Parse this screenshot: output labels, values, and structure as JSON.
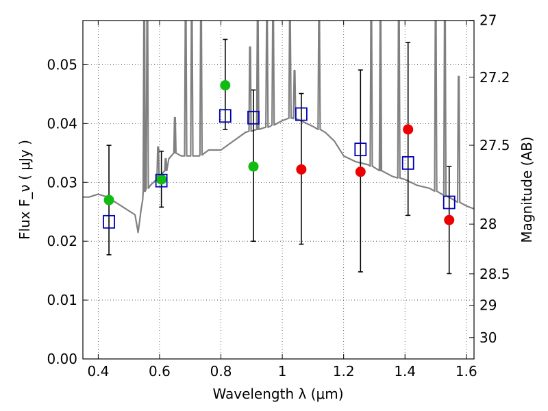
{
  "chart_data": {
    "type": "scatter",
    "xlabel": "Wavelength  λ (μm)",
    "ylabel": "Flux  F_ν  ( μJy )",
    "y2label": "Magnitude (AB)",
    "xlim": [
      0.35,
      1.625
    ],
    "ylim": [
      0.0,
      0.0575
    ],
    "x_ticks": [
      0.4,
      0.6,
      0.8,
      1.0,
      1.2,
      1.4,
      1.6
    ],
    "x_tick_labels": [
      "0.4",
      "0.6",
      "0.8",
      "1",
      "1.2",
      "1.4",
      "1.6"
    ],
    "y_ticks": [
      0.0,
      0.01,
      0.02,
      0.03,
      0.04,
      0.05
    ],
    "y_tick_labels": [
      "0.00",
      "0.01",
      "0.02",
      "0.03",
      "0.04",
      "0.05"
    ],
    "y2_ticks": [
      27,
      27.2,
      27.5,
      28,
      28.5,
      29,
      30
    ],
    "y2_tick_labels": [
      "27",
      "27.2",
      "27.5",
      "28",
      "28.5",
      "29",
      "30"
    ],
    "grid": true,
    "colors": {
      "model": "#808080",
      "green": "#11bb11",
      "red": "#ee0000",
      "square": "#0000bb",
      "errorbar": "#000000"
    },
    "model_spectrum": {
      "name": "",
      "x": [
        0.35,
        0.37,
        0.4,
        0.43,
        0.46,
        0.49,
        0.52,
        0.53,
        0.535,
        0.54,
        0.545,
        0.55,
        0.57,
        0.59,
        0.6,
        0.62,
        0.63,
        0.65,
        0.67,
        0.7,
        0.73,
        0.76,
        0.8,
        0.84,
        0.88,
        0.92,
        0.96,
        1.0,
        1.03,
        1.06,
        1.1,
        1.14,
        1.17,
        1.2,
        1.24,
        1.28,
        1.32,
        1.36,
        1.4,
        1.44,
        1.48,
        1.52,
        1.56,
        1.6,
        1.625
      ],
      "y": [
        0.0275,
        0.0275,
        0.028,
        0.0275,
        0.0265,
        0.0255,
        0.0245,
        0.0215,
        0.0235,
        0.0255,
        0.027,
        0.0285,
        0.0295,
        0.0305,
        0.031,
        0.032,
        0.034,
        0.035,
        0.0345,
        0.0345,
        0.0345,
        0.0355,
        0.0355,
        0.037,
        0.0385,
        0.039,
        0.0395,
        0.0405,
        0.041,
        0.0405,
        0.0395,
        0.0385,
        0.037,
        0.0345,
        0.0335,
        0.033,
        0.032,
        0.031,
        0.0305,
        0.0295,
        0.029,
        0.028,
        0.027,
        0.026,
        0.0255
      ]
    },
    "emission_lines": [
      {
        "x": 0.55,
        "peak": 0.0575
      },
      {
        "x": 0.56,
        "peak": 0.0575
      },
      {
        "x": 0.595,
        "peak": 0.036
      },
      {
        "x": 0.62,
        "peak": 0.034
      },
      {
        "x": 0.65,
        "peak": 0.041
      },
      {
        "x": 0.685,
        "peak": 0.0575
      },
      {
        "x": 0.705,
        "peak": 0.0575
      },
      {
        "x": 0.735,
        "peak": 0.0575
      },
      {
        "x": 0.895,
        "peak": 0.053
      },
      {
        "x": 0.92,
        "peak": 0.0575
      },
      {
        "x": 0.95,
        "peak": 0.0575
      },
      {
        "x": 0.97,
        "peak": 0.0575
      },
      {
        "x": 1.025,
        "peak": 0.0575
      },
      {
        "x": 1.04,
        "peak": 0.049
      },
      {
        "x": 1.12,
        "peak": 0.0575
      },
      {
        "x": 1.29,
        "peak": 0.0575
      },
      {
        "x": 1.32,
        "peak": 0.0575
      },
      {
        "x": 1.38,
        "peak": 0.0575
      },
      {
        "x": 1.5,
        "peak": 0.0575
      },
      {
        "x": 1.53,
        "peak": 0.0575
      },
      {
        "x": 1.575,
        "peak": 0.048
      }
    ],
    "observed": [
      {
        "x": 0.435,
        "y": 0.027,
        "color": "green"
      },
      {
        "x": 0.606,
        "y": 0.0305,
        "color": "green"
      },
      {
        "x": 0.814,
        "y": 0.0465,
        "color": "green"
      },
      {
        "x": 0.906,
        "y": 0.0327,
        "color": "green"
      },
      {
        "x": 1.062,
        "y": 0.0322,
        "color": "red"
      },
      {
        "x": 1.255,
        "y": 0.0318,
        "color": "red"
      },
      {
        "x": 1.41,
        "y": 0.039,
        "color": "red"
      },
      {
        "x": 1.544,
        "y": 0.0236,
        "color": "red"
      }
    ],
    "model_photometry": [
      {
        "x": 0.435,
        "y": 0.0233,
        "err_low": 0.0177,
        "err_high": 0.0363
      },
      {
        "x": 0.606,
        "y": 0.0303,
        "err_low": 0.0258,
        "err_high": 0.0353
      },
      {
        "x": 0.814,
        "y": 0.0413,
        "err_low": 0.039,
        "err_high": 0.0543
      },
      {
        "x": 0.906,
        "y": 0.041,
        "err_low": 0.02,
        "err_high": 0.0457
      },
      {
        "x": 1.062,
        "y": 0.0416,
        "err_low": 0.0195,
        "err_high": 0.0451
      },
      {
        "x": 1.255,
        "y": 0.0356,
        "err_low": 0.0148,
        "err_high": 0.0491
      },
      {
        "x": 1.41,
        "y": 0.0333,
        "err_low": 0.0244,
        "err_high": 0.0538
      },
      {
        "x": 1.544,
        "y": 0.0266,
        "err_low": 0.0145,
        "err_high": 0.0327
      }
    ]
  }
}
